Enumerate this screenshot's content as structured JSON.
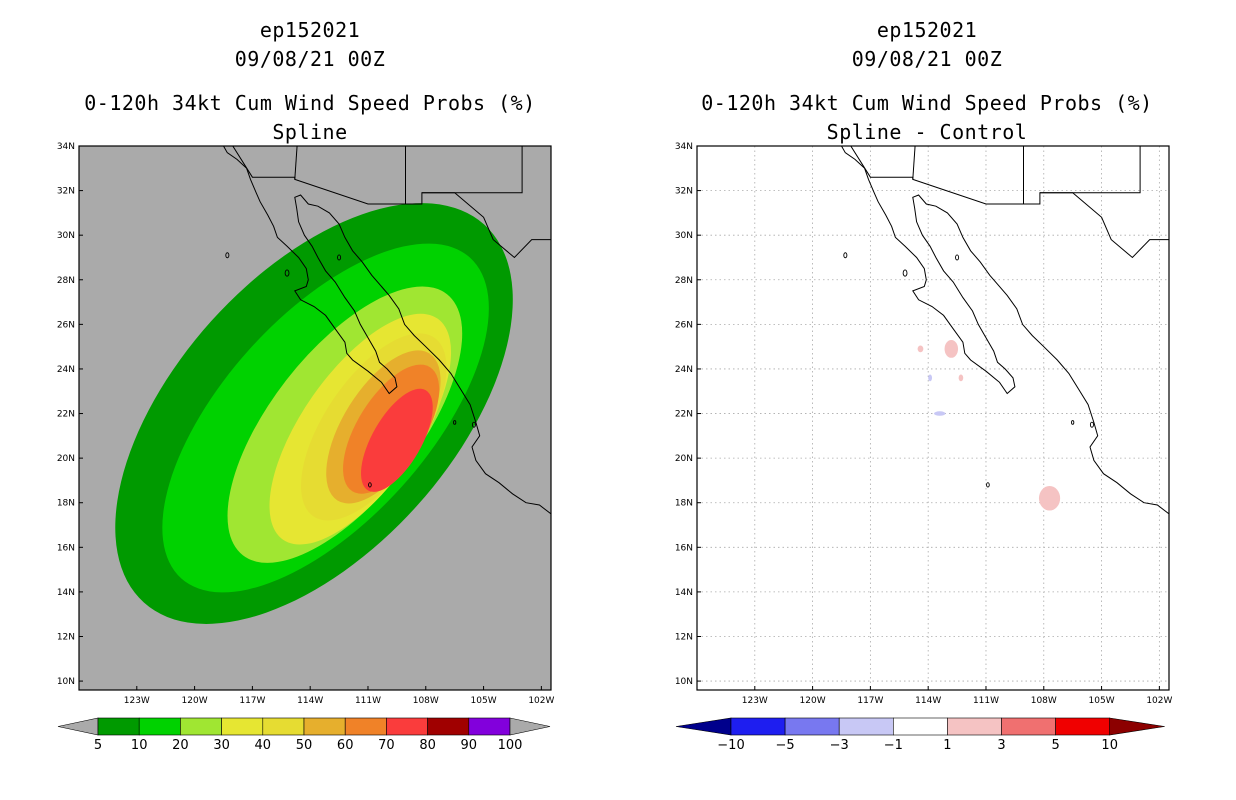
{
  "panels": [
    {
      "id": "left",
      "storm_id": "ep152021",
      "datetime": "09/08/21 00Z",
      "title": "0-120h 34kt Cum Wind Speed Probs (%)",
      "subtitle": "Spline"
    },
    {
      "id": "right",
      "storm_id": "ep152021",
      "datetime": "09/08/21 00Z",
      "title": "0-120h 34kt Cum Wind Speed Probs (%)",
      "subtitle": "Spline - Control"
    }
  ],
  "chart_data": [
    {
      "type": "heatmap",
      "title": "0-120h 34kt Cum Wind Speed Probs (%)",
      "subtitle": "Spline",
      "background_color": "#aaaaaa",
      "lon_ticks": [
        "123W",
        "120W",
        "117W",
        "114W",
        "111W",
        "108W",
        "105W",
        "102W"
      ],
      "lon_values": [
        -123,
        -120,
        -117,
        -114,
        -111,
        -108,
        -105,
        -102
      ],
      "lat_ticks": [
        "10N",
        "12N",
        "14N",
        "16N",
        "18N",
        "20N",
        "22N",
        "24N",
        "26N",
        "28N",
        "30N",
        "32N",
        "34N"
      ],
      "lat_values": [
        10,
        12,
        14,
        16,
        18,
        20,
        22,
        24,
        26,
        28,
        30,
        32,
        34
      ],
      "xlim": [
        -126,
        -101.5
      ],
      "ylim": [
        9.6,
        34
      ],
      "contour_levels": [
        5,
        10,
        20,
        30,
        40,
        50,
        60,
        70,
        80,
        90,
        100
      ],
      "colorbar_labels": [
        "5",
        "10",
        "20",
        "30",
        "40",
        "50",
        "60",
        "70",
        "80",
        "90",
        "100"
      ],
      "colorbar_colors": [
        "#009a00",
        "#00d200",
        "#a0e632",
        "#e6e632",
        "#e6dc32",
        "#e6af2d",
        "#f08228",
        "#fa3c3c",
        "#a00000",
        "#8200dc"
      ],
      "contours": [
        {
          "level": 5,
          "color": "#009a00",
          "center_lon": -113.8,
          "center_lat": 22.0,
          "semi_major_deg": 13.2,
          "semi_minor_deg": 6.2,
          "tilt_deg": -48
        },
        {
          "level": 10,
          "color": "#00d200",
          "center_lon": -113.2,
          "center_lat": 21.8,
          "semi_major_deg": 11.2,
          "semi_minor_deg": 4.6,
          "tilt_deg": -48
        },
        {
          "level": 20,
          "color": "#a0e632",
          "center_lon": -112.2,
          "center_lat": 21.5,
          "semi_major_deg": 8.6,
          "semi_minor_deg": 3.3,
          "tilt_deg": -52
        },
        {
          "level": 30,
          "color": "#e6e632",
          "center_lon": -111.4,
          "center_lat": 21.3,
          "semi_major_deg": 7.0,
          "semi_minor_deg": 2.6,
          "tilt_deg": -55
        },
        {
          "level": 40,
          "color": "#e6dc32",
          "center_lon": -110.7,
          "center_lat": 21.4,
          "semi_major_deg": 5.6,
          "semi_minor_deg": 2.2,
          "tilt_deg": -56
        },
        {
          "level": 50,
          "color": "#e6af2d",
          "center_lon": -110.2,
          "center_lat": 21.4,
          "semi_major_deg": 4.5,
          "semi_minor_deg": 1.8,
          "tilt_deg": -58
        },
        {
          "level": 60,
          "color": "#f08228",
          "center_lon": -109.8,
          "center_lat": 21.3,
          "semi_major_deg": 3.8,
          "semi_minor_deg": 1.5,
          "tilt_deg": -58
        },
        {
          "level": 70,
          "color": "#fa3c3c",
          "center_lon": -109.5,
          "center_lat": 20.8,
          "semi_major_deg": 3.0,
          "semi_minor_deg": 1.1,
          "tilt_deg": -60
        }
      ]
    },
    {
      "type": "heatmap",
      "title": "0-120h 34kt Cum Wind Speed Probs (%)",
      "subtitle": "Spline - Control",
      "background_color": "#ffffff",
      "grid": true,
      "lon_ticks": [
        "123W",
        "120W",
        "117W",
        "114W",
        "111W",
        "108W",
        "105W",
        "102W"
      ],
      "lon_values": [
        -123,
        -120,
        -117,
        -114,
        -111,
        -108,
        -105,
        -102
      ],
      "lat_ticks": [
        "10N",
        "12N",
        "14N",
        "16N",
        "18N",
        "20N",
        "22N",
        "24N",
        "26N",
        "28N",
        "30N",
        "32N",
        "34N"
      ],
      "lat_values": [
        10,
        12,
        14,
        16,
        18,
        20,
        22,
        24,
        26,
        28,
        30,
        32,
        34
      ],
      "xlim": [
        -126,
        -101.5
      ],
      "ylim": [
        9.6,
        34
      ],
      "contour_levels": [
        -10,
        -5,
        -3,
        -1,
        1,
        3,
        5,
        10
      ],
      "colorbar_labels": [
        "-10",
        "-5",
        "-3",
        "-1",
        "1",
        "3",
        "5",
        "10"
      ],
      "colorbar_colors": [
        "#00008c",
        "#1e1ef0",
        "#7878f0",
        "#c8c8f5",
        "#ffffff",
        "#f5c3c3",
        "#f07070",
        "#f00000",
        "#8c0000"
      ],
      "blobs": [
        {
          "level": 1,
          "color": "#f5c3c3",
          "lon": -107.7,
          "lat": 18.2,
          "r_lon": 0.55,
          "r_lat": 0.55
        },
        {
          "level": 1,
          "color": "#f5c3c3",
          "lon": -112.8,
          "lat": 24.9,
          "r_lon": 0.35,
          "r_lat": 0.4
        },
        {
          "level": 1,
          "color": "#f5c3c3",
          "lon": -114.4,
          "lat": 24.9,
          "r_lon": 0.15,
          "r_lat": 0.15
        },
        {
          "level": 1,
          "color": "#f5c3c3",
          "lon": -112.3,
          "lat": 23.6,
          "r_lon": 0.12,
          "r_lat": 0.15
        },
        {
          "level": -1,
          "color": "#c8c8f5",
          "lon": -113.4,
          "lat": 22.0,
          "r_lon": 0.3,
          "r_lat": 0.1
        },
        {
          "level": -1,
          "color": "#c8c8f5",
          "lon": -113.9,
          "lat": 23.6,
          "r_lon": 0.1,
          "r_lat": 0.15
        }
      ]
    }
  ]
}
